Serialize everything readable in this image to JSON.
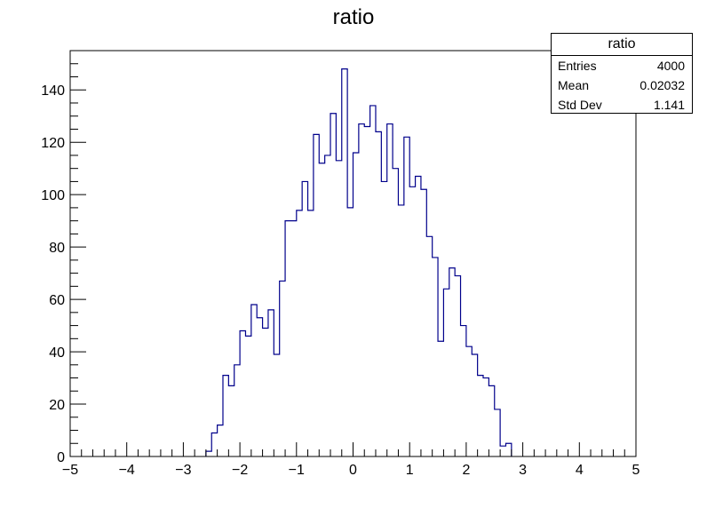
{
  "chart_data": {
    "type": "bar",
    "title": "ratio",
    "xlabel": "",
    "ylabel": "",
    "xlim": [
      -5,
      5
    ],
    "ylim": [
      0,
      155
    ],
    "x_ticks": [
      "−5",
      "−4",
      "−3",
      "−2",
      "−1",
      "0",
      "1",
      "2",
      "3",
      "4",
      "5"
    ],
    "y_ticks": [
      "0",
      "20",
      "40",
      "60",
      "80",
      "100",
      "120",
      "140"
    ],
    "bin_width": 0.1,
    "bins_start": -2.6,
    "values": [
      2,
      9,
      12,
      31,
      27,
      35,
      48,
      46,
      58,
      53,
      49,
      56,
      39,
      67,
      90,
      90,
      94,
      105,
      94,
      123,
      112,
      115,
      131,
      113,
      148,
      95,
      116,
      127,
      126,
      134,
      124,
      105,
      127,
      110,
      96,
      122,
      103,
      107,
      102,
      84,
      76,
      44,
      64,
      72,
      69,
      50,
      42,
      39,
      31,
      30,
      27,
      18,
      4,
      5
    ],
    "line_color": "#00008b",
    "grid": false,
    "stats_box": {
      "title": "ratio",
      "entries_label": "Entries",
      "entries_value": "4000",
      "mean_label": "Mean",
      "mean_value": "0.02032",
      "std_label": "Std Dev",
      "std_value": "1.141"
    }
  }
}
